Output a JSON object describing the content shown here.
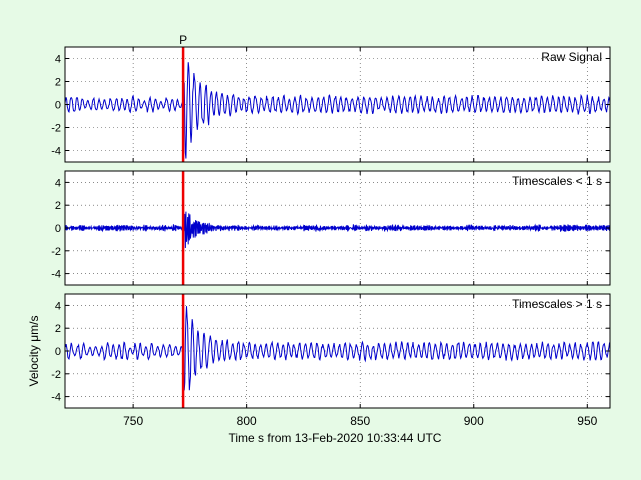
{
  "figure": {
    "background": "#e6fae6",
    "axes_background": "#ffffff",
    "trace_color": "#0000cc",
    "pick_color": "#ee0000",
    "xlabel": "Time s from 13-Feb-2020 10:33:44 UTC"
  },
  "chart_data": [
    {
      "type": "line",
      "title": "Raw Signal",
      "ylabel": "",
      "xlim": [
        720,
        960
      ],
      "ylim": [
        -5,
        5
      ],
      "xticks": [
        750,
        800,
        850,
        900,
        950
      ],
      "yticks": [
        4,
        2,
        0,
        -2,
        -4
      ],
      "ytick_labels": [
        "4",
        "2",
        "0",
        "-2",
        "-4"
      ],
      "grid": true,
      "phase_pick": {
        "label": "P",
        "x": 772
      },
      "signal": {
        "sample_interval_s": 0.25,
        "background_amplitude": 0.45,
        "dominant_period_s": 2.5,
        "event_onset_s": 772,
        "event_peak_amplitude": 4.3,
        "event_decay_s": 7,
        "late_amplitude": 0.55
      }
    },
    {
      "type": "line",
      "title": "Timescales < 1 s",
      "ylabel": "",
      "xlim": [
        720,
        960
      ],
      "ylim": [
        -5,
        5
      ],
      "xticks": [
        750,
        800,
        850,
        900,
        950
      ],
      "yticks": [
        4,
        2,
        0,
        -2,
        -4
      ],
      "ytick_labels": [
        "4",
        "2",
        "0",
        "-2",
        "-4"
      ],
      "grid": true,
      "phase_pick": {
        "label": "",
        "x": 772
      },
      "signal": {
        "sample_interval_s": 0.25,
        "background_amplitude": 0.18,
        "dominant_period_s": 0.6,
        "event_onset_s": 772,
        "event_peak_amplitude": 2.0,
        "event_decay_s": 5,
        "late_amplitude": 0.12
      }
    },
    {
      "type": "line",
      "title": "Timescales > 1 s",
      "ylabel": "Velocity μm/s",
      "xlim": [
        720,
        960
      ],
      "ylim": [
        -5,
        5
      ],
      "xticks": [
        750,
        800,
        850,
        900,
        950
      ],
      "yticks": [
        4,
        2,
        0,
        -2,
        -4
      ],
      "ytick_labels": [
        "4",
        "2",
        "0",
        "-2",
        "-4"
      ],
      "grid": true,
      "phase_pick": {
        "label": "",
        "x": 772
      },
      "signal": {
        "sample_interval_s": 0.25,
        "background_amplitude": 0.45,
        "dominant_period_s": 2.5,
        "event_onset_s": 772,
        "event_peak_amplitude": 4.0,
        "event_decay_s": 7,
        "late_amplitude": 0.55
      }
    }
  ]
}
